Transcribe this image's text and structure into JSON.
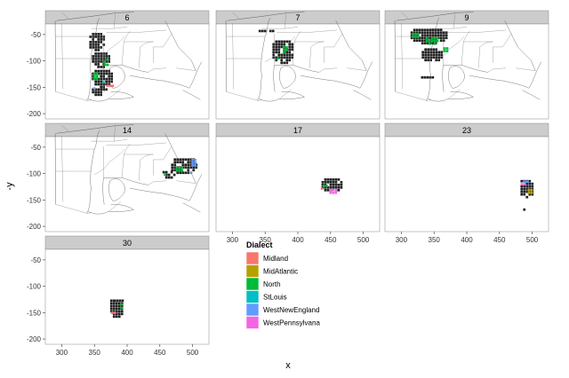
{
  "chart_data": {
    "type": "faceted-map",
    "xlabel": "x",
    "ylabel": "-y",
    "xlim": [
      275,
      525
    ],
    "ylim": [
      -210,
      -30
    ],
    "xticks": [
      300,
      350,
      400,
      450,
      500
    ],
    "yticks": [
      -50,
      -100,
      -150,
      -200
    ],
    "legend": {
      "title": "Dialect",
      "placement": "bottom-middle",
      "items": [
        {
          "name": "Midland",
          "color": "#f8766d"
        },
        {
          "name": "MidAtlantic",
          "color": "#b79f00"
        },
        {
          "name": "North",
          "color": "#00ba38"
        },
        {
          "name": "StLouis",
          "color": "#00bfc4"
        },
        {
          "name": "WestNewEngland",
          "color": "#619cff"
        },
        {
          "name": "WestPennsylvana",
          "color": "#f564e3"
        }
      ]
    },
    "facets": [
      {
        "label": "6",
        "clusters": [
          {
            "x": 352,
            "y": -60,
            "rx": 14,
            "ry": 18,
            "color": "#222222"
          },
          {
            "x": 358,
            "y": -95,
            "rx": 16,
            "ry": 16,
            "color": "#222222"
          },
          {
            "x": 360,
            "y": -130,
            "rx": 18,
            "ry": 18,
            "color": "#222222"
          },
          {
            "x": 356,
            "y": -155,
            "rx": 14,
            "ry": 8,
            "color": "#222222"
          },
          {
            "x": 365,
            "y": -100,
            "rx": 5,
            "ry": 10,
            "color": "#00ba38"
          },
          {
            "x": 350,
            "y": -125,
            "rx": 6,
            "ry": 8,
            "color": "#00ba38"
          },
          {
            "x": 372,
            "y": -145,
            "rx": 8,
            "ry": 5,
            "color": "#f8766d"
          },
          {
            "x": 360,
            "y": -138,
            "rx": 6,
            "ry": 5,
            "color": "#00bfc4"
          },
          {
            "x": 348,
            "y": -150,
            "rx": 4,
            "ry": 5,
            "color": "#619cff"
          }
        ]
      },
      {
        "label": "7",
        "clusters": [
          {
            "x": 375,
            "y": -80,
            "rx": 18,
            "ry": 24,
            "color": "#222222"
          },
          {
            "x": 350,
            "y": -40,
            "rx": 14,
            "ry": 4,
            "color": "#222222"
          },
          {
            "x": 378,
            "y": -75,
            "rx": 5,
            "ry": 8,
            "color": "#00ba38"
          },
          {
            "x": 368,
            "y": -92,
            "rx": 4,
            "ry": 4,
            "color": "#00ba38"
          }
        ]
      },
      {
        "label": "9",
        "clusters": [
          {
            "x": 340,
            "y": -50,
            "rx": 30,
            "ry": 16,
            "color": "#222222"
          },
          {
            "x": 345,
            "y": -85,
            "rx": 18,
            "ry": 14,
            "color": "#222222"
          },
          {
            "x": 345,
            "y": -58,
            "rx": 12,
            "ry": 8,
            "color": "#00ba38"
          },
          {
            "x": 320,
            "y": -48,
            "rx": 8,
            "ry": 6,
            "color": "#00ba38"
          },
          {
            "x": 365,
            "y": -75,
            "rx": 5,
            "ry": 6,
            "color": "#00ba38"
          },
          {
            "x": 338,
            "y": -128,
            "rx": 12,
            "ry": 4,
            "color": "#222222"
          }
        ]
      },
      {
        "label": "14",
        "clusters": [
          {
            "x": 485,
            "y": -82,
            "rx": 22,
            "ry": 16,
            "color": "#222222"
          },
          {
            "x": 462,
            "y": -98,
            "rx": 12,
            "ry": 8,
            "color": "#222222"
          },
          {
            "x": 458,
            "y": -100,
            "rx": 6,
            "ry": 5,
            "color": "#00ba38"
          },
          {
            "x": 478,
            "y": -88,
            "rx": 8,
            "ry": 6,
            "color": "#00ba38"
          },
          {
            "x": 500,
            "y": -75,
            "rx": 6,
            "ry": 8,
            "color": "#619cff"
          },
          {
            "x": 496,
            "y": -95,
            "rx": 4,
            "ry": 4,
            "color": "#619cff"
          }
        ]
      },
      {
        "label": "17",
        "clusters": [
          {
            "x": 450,
            "y": -118,
            "rx": 18,
            "ry": 14,
            "color": "#222222"
          },
          {
            "x": 452,
            "y": -130,
            "rx": 8,
            "ry": 6,
            "color": "#f564e3"
          },
          {
            "x": 440,
            "y": -120,
            "rx": 6,
            "ry": 4,
            "color": "#00ba38"
          },
          {
            "x": 435,
            "y": -124,
            "rx": 4,
            "ry": 3,
            "color": "#f8766d"
          }
        ]
      },
      {
        "label": "23",
        "clusters": [
          {
            "x": 490,
            "y": -125,
            "rx": 12,
            "ry": 18,
            "color": "#222222"
          },
          {
            "x": 480,
            "y": -118,
            "rx": 10,
            "ry": 5,
            "color": "#f564e3"
          },
          {
            "x": 495,
            "y": -130,
            "rx": 6,
            "ry": 6,
            "color": "#b79f00"
          },
          {
            "x": 488,
            "y": -112,
            "rx": 5,
            "ry": 4,
            "color": "#619cff"
          },
          {
            "x": 485,
            "y": -165,
            "rx": 3,
            "ry": 4,
            "color": "#222222"
          }
        ]
      },
      {
        "label": "30",
        "clusters": [
          {
            "x": 382,
            "y": -140,
            "rx": 12,
            "ry": 20,
            "color": "#222222"
          },
          {
            "x": 385,
            "y": -125,
            "rx": 10,
            "ry": 5,
            "color": "#222222"
          },
          {
            "x": 376,
            "y": -148,
            "rx": 5,
            "ry": 5,
            "color": "#f8766d"
          },
          {
            "x": 390,
            "y": -138,
            "rx": 4,
            "ry": 4,
            "color": "#00ba38"
          },
          {
            "x": 388,
            "y": -130,
            "rx": 3,
            "ry": 3,
            "color": "#00ba38"
          }
        ]
      }
    ]
  }
}
